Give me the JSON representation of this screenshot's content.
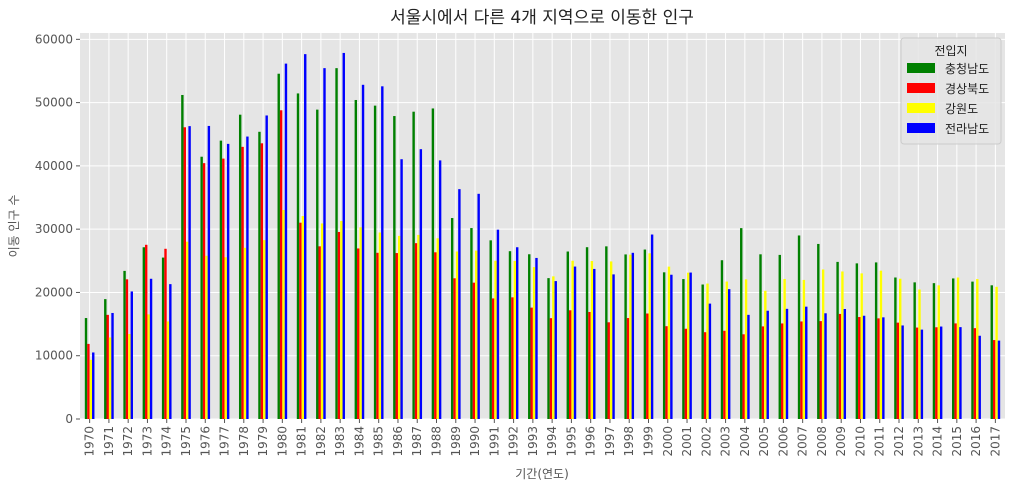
{
  "chart_data": {
    "type": "bar",
    "title": "서울시에서 다른 4개 지역으로 이동한 인구",
    "xlabel": "기간(연도)",
    "ylabel": "이동 인구 수",
    "ylim": [
      0,
      61000
    ],
    "yticks": [
      0,
      10000,
      20000,
      30000,
      40000,
      50000,
      60000
    ],
    "grid": true,
    "legend_title": "전입지",
    "legend_position": "top-right",
    "categories": [
      "1970",
      "1971",
      "1972",
      "1973",
      "1974",
      "1975",
      "1976",
      "1977",
      "1978",
      "1979",
      "1980",
      "1981",
      "1982",
      "1983",
      "1984",
      "1985",
      "1986",
      "1987",
      "1988",
      "1989",
      "1990",
      "1991",
      "1992",
      "1993",
      "1994",
      "1995",
      "1996",
      "1997",
      "1998",
      "1999",
      "2000",
      "2001",
      "2002",
      "2003",
      "2004",
      "2005",
      "2006",
      "2007",
      "2008",
      "2009",
      "2010",
      "2011",
      "2012",
      "2013",
      "2014",
      "2015",
      "2016",
      "2017"
    ],
    "series": [
      {
        "name": "충청남도",
        "color": "#008000",
        "values": [
          15954,
          18943,
          23406,
          27139,
          25509,
          51205,
          41447,
          43993,
          48091,
          45388,
          54564,
          51451,
          48891,
          55446,
          50414,
          49521,
          47877,
          48564,
          49075,
          31760,
          30175,
          28235,
          26519,
          26034,
          22263,
          26468,
          27149,
          27284,
          26008,
          26778,
          23181,
          22115,
          21254,
          25092,
          30163,
          26026,
          25933,
          29003,
          27665,
          24827,
          24595,
          24745,
          22362,
          21594,
          21468,
          22212,
          21711,
          21128
        ]
      },
      {
        "name": "경상북도",
        "color": "#ff0000",
        "values": [
          11868,
          16459,
          22073,
          27531,
          26899,
          46101,
          40433,
          41153,
          43009,
          43570,
          48789,
          31024,
          27288,
          29558,
          26952,
          26266,
          26223,
          27788,
          26345,
          22235,
          21545,
          19056,
          19226,
          17603,
          15935,
          17181,
          16914,
          15282,
          15954,
          16672,
          14665,
          14262,
          13719,
          13943,
          13387,
          14634,
          15102,
          15415,
          15470,
          16604,
          16114,
          15904,
          15228,
          14450,
          14496,
          15109,
          14353,
          12475
        ]
      },
      {
        "name": "강원도",
        "color": "#ffff00",
        "values": [
          9352,
          12885,
          13434,
          16531,
          15416,
          28019,
          25795,
          25559,
          27059,
          28269,
          33028,
          32070,
          30908,
          31285,
          30296,
          29474,
          28938,
          29093,
          28562,
          26470,
          26613,
          25004,
          24974,
          24001,
          22543,
          25011,
          24966,
          24903,
          25970,
          26184,
          24080,
          23124,
          21404,
          21719,
          22070,
          20261,
          22129,
          21977,
          23632,
          23315,
          23015,
          23444,
          22167,
          20465,
          21125,
          22358,
          22115,
          20889
        ]
      },
      {
        "name": "전라남도",
        "color": "#0000ff",
        "values": [
          10513,
          16755,
          20157,
          22160,
          21314,
          46283,
          46311,
          43480,
          44636,
          47967,
          56163,
          57660,
          55447,
          57849,
          52814,
          52574,
          41054,
          42640,
          40868,
          36323,
          35587,
          29920,
          27142,
          25452,
          21793,
          24091,
          23715,
          22854,
          26262,
          29153,
          22798,
          23143,
          18235,
          20525,
          16459,
          17109,
          17409,
          17753,
          16707,
          17383,
          16318,
          16064,
          14783,
          14126,
          14611,
          14520,
          13155,
          12390
        ]
      }
    ]
  }
}
